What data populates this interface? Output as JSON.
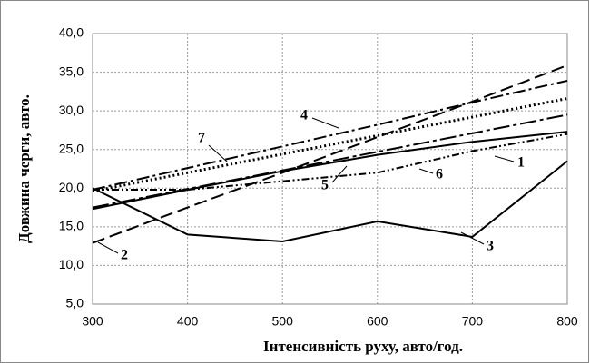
{
  "chart_data": {
    "type": "line",
    "xlabel": "Інтенсивність руху, авто/год.",
    "ylabel": "Довжина черги, авто.",
    "x": [
      300,
      400,
      500,
      600,
      700,
      800
    ],
    "xlim": [
      300,
      800
    ],
    "xticks": [
      300,
      400,
      500,
      600,
      700,
      800
    ],
    "ylim": [
      5,
      40
    ],
    "yticks": [
      {
        "value": 5,
        "label": "5,0"
      },
      {
        "value": 10,
        "label": "10,0"
      },
      {
        "value": 15,
        "label": "15,0"
      },
      {
        "value": 20,
        "label": "20,0"
      },
      {
        "value": 25,
        "label": "25,0"
      },
      {
        "value": 30,
        "label": "30,0"
      },
      {
        "value": 35,
        "label": "35,0"
      },
      {
        "value": 40,
        "label": "40,0"
      }
    ],
    "grid": true,
    "series": [
      {
        "name": "1",
        "color": "#000000",
        "values": [
          17.3,
          19.8,
          22.2,
          24.3,
          26.0,
          27.3
        ]
      },
      {
        "name": "2",
        "color": "#000000",
        "values": [
          12.9,
          17.5,
          22.0,
          26.6,
          31.2,
          35.9
        ]
      },
      {
        "name": "3",
        "color": "#000000",
        "values": [
          20.0,
          14.0,
          13.1,
          15.7,
          13.7,
          23.5
        ]
      },
      {
        "name": "4",
        "color": "#000000",
        "values": [
          19.8,
          22.6,
          25.4,
          28.2,
          31.1,
          33.9
        ]
      },
      {
        "name": "5",
        "color": "#000000",
        "values": [
          17.5,
          19.9,
          22.3,
          24.7,
          27.1,
          29.5
        ]
      },
      {
        "name": "6",
        "color": "#000000",
        "values": [
          19.8,
          19.8,
          20.9,
          22.0,
          24.8,
          27.0
        ]
      },
      {
        "name": "7",
        "color": "#000000",
        "values": [
          19.6,
          22.0,
          24.4,
          26.8,
          29.2,
          31.6
        ]
      }
    ]
  }
}
